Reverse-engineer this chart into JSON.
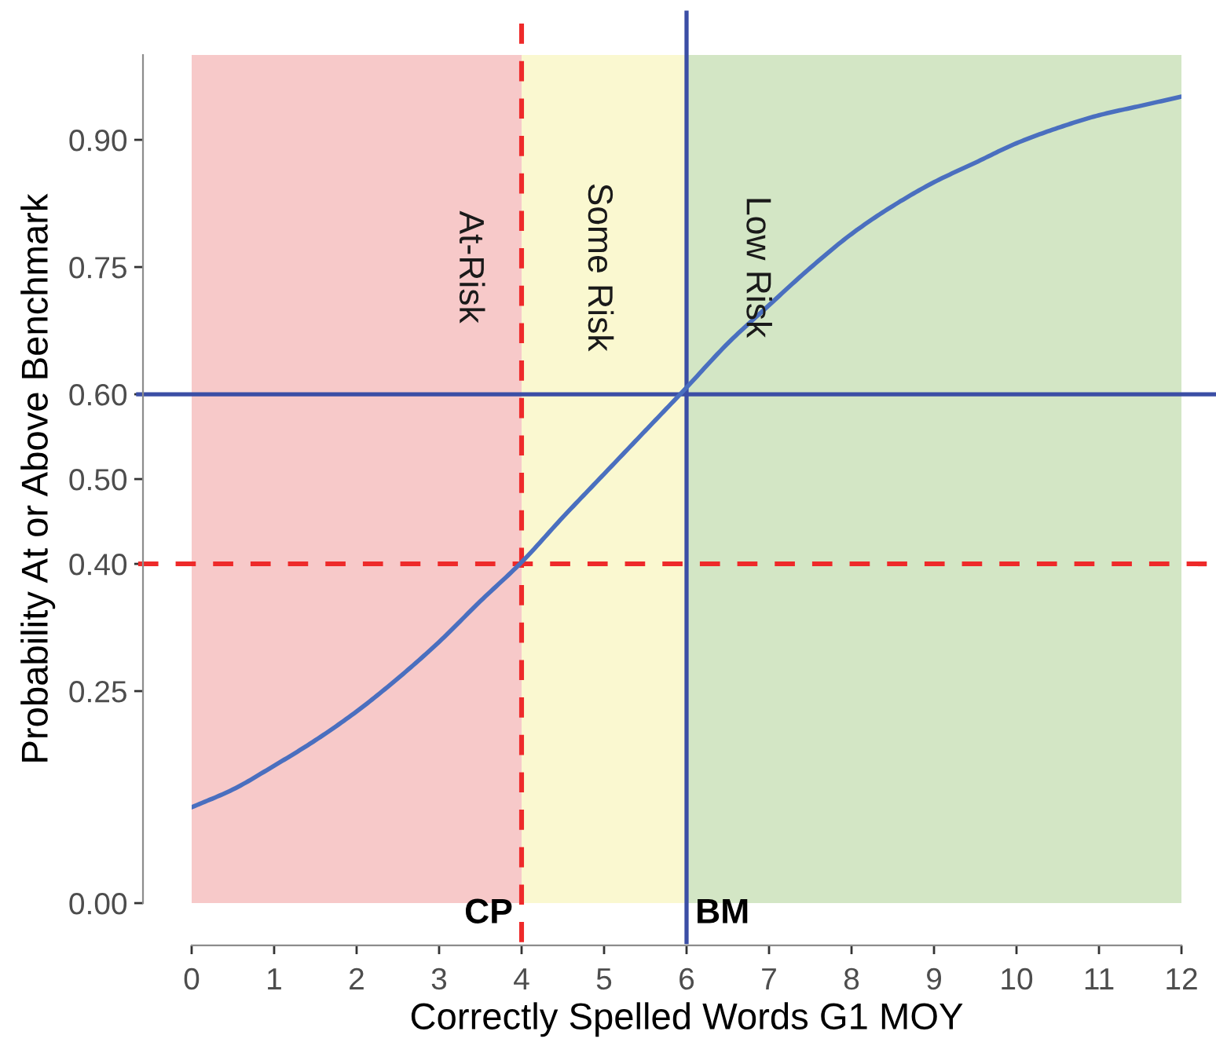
{
  "chart_data": {
    "type": "line",
    "xlabel": "Correctly Spelled Words G1 MOY",
    "ylabel": "Probability At or Above Benchmark",
    "x": [
      0,
      0.5,
      1,
      1.5,
      2,
      2.5,
      3,
      3.5,
      4,
      4.5,
      5,
      5.5,
      6,
      6.5,
      7,
      7.5,
      8,
      8.5,
      9,
      9.5,
      10,
      10.5,
      11,
      11.5,
      12
    ],
    "series": [
      {
        "color": "#4a6fbf",
        "values": [
          0.113,
          0.134,
          0.162,
          0.192,
          0.226,
          0.265,
          0.308,
          0.356,
          0.402,
          0.455,
          0.506,
          0.557,
          0.608,
          0.66,
          0.705,
          0.749,
          0.789,
          0.822,
          0.85,
          0.873,
          0.896,
          0.914,
          0.929,
          0.94,
          0.951
        ]
      }
    ],
    "xlim": [
      0,
      12
    ],
    "ylim": [
      0,
      1
    ],
    "xticks": [
      0,
      1,
      2,
      3,
      4,
      5,
      6,
      7,
      8,
      9,
      10,
      11,
      12
    ],
    "yticks": [
      {
        "value": 0,
        "label": "0.00"
      },
      {
        "value": 0.25,
        "label": "0.25"
      },
      {
        "value": 0.4,
        "label": "0.40"
      },
      {
        "value": 0.5,
        "label": "0.50"
      },
      {
        "value": 0.6,
        "label": "0.60"
      },
      {
        "value": 0.75,
        "label": "0.75"
      },
      {
        "value": 0.9,
        "label": "0.90"
      }
    ],
    "bands": [
      {
        "axis": "x",
        "from": 0,
        "to": 4,
        "label": "At-Risk",
        "color": "#f7c9c9"
      },
      {
        "axis": "x",
        "from": 4,
        "to": 6,
        "label": "Some Risk",
        "color": "#faf8d0"
      },
      {
        "axis": "x",
        "from": 6,
        "to": 12,
        "label": "Low Risk",
        "color": "#d3e6c5"
      }
    ],
    "ref_lines": [
      {
        "axis": "x",
        "value": 4,
        "label": "CP",
        "color": "#ee2a2a",
        "line_style": "dashed"
      },
      {
        "axis": "x",
        "value": 6,
        "label": "BM",
        "color": "#3b4ea5"
      },
      {
        "axis": "y",
        "value": 0.6,
        "color": "#3b4ea5"
      },
      {
        "axis": "y",
        "value": 0.4,
        "color": "#ee2a2a",
        "line_style": "dashed"
      }
    ]
  }
}
